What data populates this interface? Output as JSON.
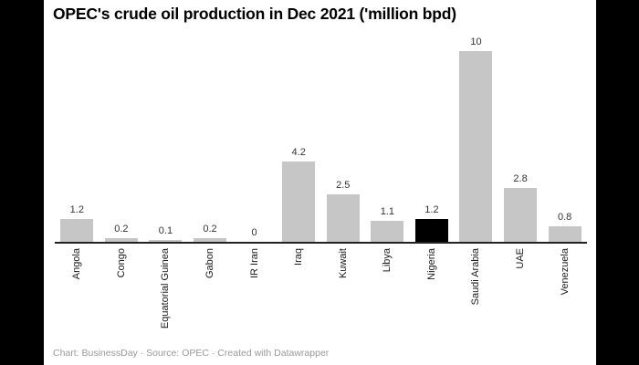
{
  "chart_data": {
    "type": "bar",
    "title": "OPEC's crude oil production in Dec 2021 ('million bpd)",
    "xlabel": "",
    "ylabel": "",
    "ylim": [
      0,
      10
    ],
    "grid": false,
    "legend": "none",
    "categories": [
      "Angola",
      "Congo",
      "Equatorial Guinea",
      "Gabon",
      "IR Iran",
      "Iraq",
      "Kuwait",
      "Libya",
      "Nigeria",
      "Saudi Arabia",
      "UAE",
      "Venezuela"
    ],
    "values": [
      1.2,
      0.2,
      0.1,
      0.2,
      0,
      4.2,
      2.5,
      1.1,
      1.2,
      10,
      2.8,
      0.8
    ],
    "value_labels": [
      "1.2",
      "0.2",
      "0.1",
      "0.2",
      "0",
      "4.2",
      "2.5",
      "1.1",
      "1.2",
      "10",
      "2.8",
      "0.8"
    ],
    "highlight_index": 8,
    "highlight_category": "Nigeria",
    "colors": {
      "bar": "#c6c6c6",
      "highlight": "#000000",
      "axis": "#222222",
      "value_label": "#333333",
      "tick_label": "#1a1a1a",
      "title": "#000000",
      "footer": "#999999",
      "panel_background": "#ffffff",
      "page_background": "#000000"
    }
  },
  "footer": {
    "text": "Chart: BusinessDay · Source: OPEC · Created with Datawrapper"
  }
}
